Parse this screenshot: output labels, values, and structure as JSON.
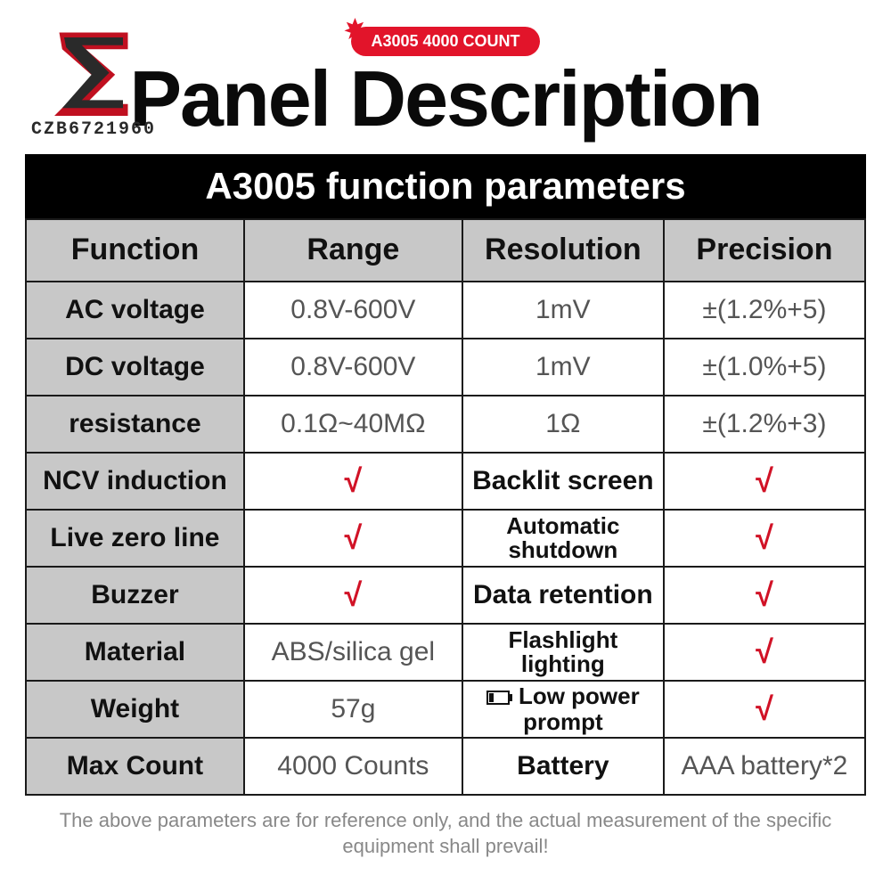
{
  "logo": {
    "text": "CZB6721960"
  },
  "badge": "A3005 4000 COUNT",
  "title": "Panel Description",
  "caption": "A3005 function parameters",
  "columns": [
    "Function",
    "Range",
    "Resolution",
    "Precision"
  ],
  "rows_top": [
    {
      "fn": "AC voltage",
      "range": "0.8V-600V",
      "res": "1mV",
      "prec": "±(1.2%+5)"
    },
    {
      "fn": "DC voltage",
      "range": "0.8V-600V",
      "res": "1mV",
      "prec": "±(1.0%+5)"
    },
    {
      "fn": "resistance",
      "range": "0.1Ω~40MΩ",
      "res": "1Ω",
      "prec": "±(1.2%+3)"
    }
  ],
  "rows_bottom": [
    {
      "l1": "NCV induction",
      "v1": "√",
      "l2": "Backlit screen",
      "v2": "√",
      "v1check": true,
      "v2check": true
    },
    {
      "l1": "Live zero line",
      "v1": "√",
      "l2": "Automatic shutdown",
      "v2": "√",
      "v1check": true,
      "v2check": true,
      "l2small": true
    },
    {
      "l1": "Buzzer",
      "v1": "√",
      "l2": "Data retention",
      "v2": "√",
      "v1check": true,
      "v2check": true
    },
    {
      "l1": "Material",
      "v1": "ABS/silica gel",
      "l2": "Flashlight lighting",
      "v2": "√",
      "v1check": false,
      "v2check": true,
      "l2small": true
    },
    {
      "l1": "Weight",
      "v1": "57g",
      "l2": "Low power prompt",
      "v2": "√",
      "v1check": false,
      "v2check": true,
      "l2small": true,
      "battery": true
    },
    {
      "l1": "Max Count",
      "v1": "4000 Counts",
      "l2": "Battery",
      "v2": "AAA battery*2",
      "v1check": false,
      "v2check": false
    }
  ],
  "footnote": "The above parameters are for reference only, and the actual measurement of the specific equipment shall prevail!",
  "colors": {
    "badge_bg": "#e2142a",
    "header_bg": "#c8c8c8",
    "check_color": "#d11226",
    "border": "#1a1a1a"
  }
}
